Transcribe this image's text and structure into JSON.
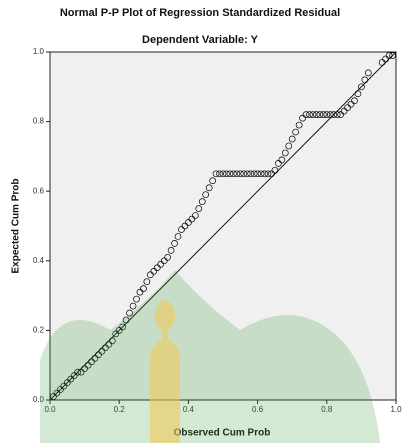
{
  "chart_data": {
    "type": "scatter",
    "title": "Normal P-P Plot of Regression Standardized Residual",
    "subtitle": "Dependent Variable: Y",
    "x_label": "Observed Cum Prob",
    "y_label": "Expected Cum Prob",
    "xlim": [
      0,
      1
    ],
    "ylim": [
      0,
      1
    ],
    "xticks": [
      {
        "value": 0,
        "label": "0.0"
      },
      {
        "value": 0.2,
        "label": "0.2"
      },
      {
        "value": 0.4,
        "label": "0.4"
      },
      {
        "value": 0.6,
        "label": "0.6"
      },
      {
        "value": 0.8,
        "label": "0.8"
      },
      {
        "value": 1,
        "label": "1.0"
      }
    ],
    "yticks": [
      {
        "value": 0,
        "label": "0.0"
      },
      {
        "value": 0.2,
        "label": "0.2"
      },
      {
        "value": 0.4,
        "label": "0.4"
      },
      {
        "value": 0.6,
        "label": "0.6"
      },
      {
        "value": 0.8,
        "label": "0.8"
      },
      {
        "value": 1,
        "label": "1.0"
      }
    ],
    "grid": false,
    "reference_line": true,
    "color": "#000000",
    "x": [
      0.01,
      0.02,
      0.03,
      0.04,
      0.05,
      0.06,
      0.07,
      0.08,
      0.09,
      0.1,
      0.11,
      0.12,
      0.13,
      0.14,
      0.15,
      0.16,
      0.17,
      0.18,
      0.19,
      0.2,
      0.21,
      0.22,
      0.23,
      0.24,
      0.25,
      0.26,
      0.27,
      0.28,
      0.29,
      0.3,
      0.31,
      0.32,
      0.33,
      0.34,
      0.35,
      0.36,
      0.37,
      0.38,
      0.39,
      0.4,
      0.41,
      0.42,
      0.43,
      0.44,
      0.45,
      0.46,
      0.47,
      0.48,
      0.49,
      0.5,
      0.51,
      0.52,
      0.53,
      0.54,
      0.55,
      0.56,
      0.57,
      0.58,
      0.59,
      0.6,
      0.61,
      0.62,
      0.63,
      0.64,
      0.65,
      0.66,
      0.67,
      0.68,
      0.69,
      0.7,
      0.71,
      0.72,
      0.73,
      0.74,
      0.75,
      0.76,
      0.77,
      0.78,
      0.79,
      0.8,
      0.81,
      0.82,
      0.83,
      0.84,
      0.85,
      0.86,
      0.87,
      0.88,
      0.89,
      0.9,
      0.91,
      0.92,
      0.96,
      0.97,
      0.98,
      0.99
    ],
    "y": [
      0.01,
      0.02,
      0.03,
      0.04,
      0.05,
      0.06,
      0.07,
      0.08,
      0.08,
      0.09,
      0.1,
      0.11,
      0.12,
      0.13,
      0.14,
      0.15,
      0.16,
      0.17,
      0.19,
      0.2,
      0.21,
      0.23,
      0.25,
      0.27,
      0.29,
      0.31,
      0.32,
      0.34,
      0.36,
      0.37,
      0.38,
      0.39,
      0.4,
      0.41,
      0.43,
      0.45,
      0.47,
      0.49,
      0.5,
      0.51,
      0.52,
      0.53,
      0.55,
      0.57,
      0.59,
      0.61,
      0.63,
      0.65,
      0.65,
      0.65,
      0.65,
      0.65,
      0.65,
      0.65,
      0.65,
      0.65,
      0.65,
      0.65,
      0.65,
      0.65,
      0.65,
      0.65,
      0.65,
      0.65,
      0.66,
      0.68,
      0.69,
      0.71,
      0.73,
      0.75,
      0.77,
      0.79,
      0.81,
      0.82,
      0.82,
      0.82,
      0.82,
      0.82,
      0.82,
      0.82,
      0.82,
      0.82,
      0.82,
      0.82,
      0.83,
      0.84,
      0.85,
      0.86,
      0.88,
      0.9,
      0.92,
      0.94,
      0.97,
      0.98,
      0.99,
      0.99
    ]
  }
}
